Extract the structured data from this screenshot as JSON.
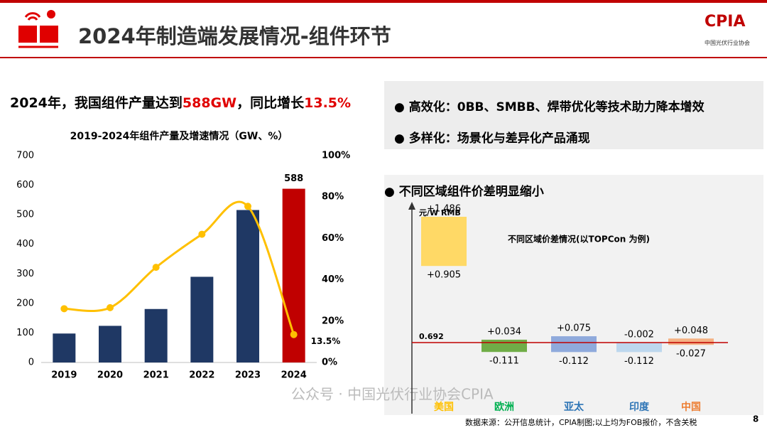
{
  "header": {
    "title": "2024年制造端发展情况-组件环节",
    "logo": "CPIA",
    "logo_sub": "中国光伏行业协会"
  },
  "headline": {
    "parts": [
      {
        "text": "2024年，我国组件产量达到",
        "color": "#000000"
      },
      {
        "text": "588GW",
        "color": "#e00000"
      },
      {
        "text": "，同比增长",
        "color": "#000000"
      },
      {
        "text": "13.5%",
        "color": "#e00000"
      }
    ]
  },
  "bullets": [
    "高效化：0BB、SMBB、焊带优化等技术助力降本增效",
    "多样化：场景化与差异化产品涌现"
  ],
  "section_title": "不同区域组件价差明显缩小",
  "chart_data": [
    {
      "type": "bar_line",
      "title": "2019-2024年组件产量及增速情况（GW、%）",
      "categories": [
        "2019",
        "2020",
        "2021",
        "2022",
        "2023",
        "2024"
      ],
      "series": [
        {
          "type": "bar",
          "colors": [
            "#1f3864",
            "#1f3864",
            "#1f3864",
            "#1f3864",
            "#1f3864",
            "#c00000"
          ],
          "values": [
            98,
            124,
            181,
            290,
            516,
            588
          ],
          "value_labels": [
            null,
            null,
            null,
            null,
            null,
            "588"
          ]
        },
        {
          "type": "line",
          "axis": "y2",
          "color": "#ffc000",
          "values": [
            26,
            26.5,
            46,
            62,
            75.5,
            13.5
          ],
          "value_labels": [
            null,
            null,
            null,
            null,
            null,
            "13.5%"
          ]
        }
      ],
      "ylim": [
        0,
        700
      ],
      "yticks": [
        0,
        100,
        200,
        300,
        400,
        500,
        600,
        700
      ],
      "y2lim": [
        0,
        100
      ],
      "y2ticks": [
        {
          "value": 0,
          "label": "0%"
        },
        {
          "value": 20,
          "label": "20%"
        },
        {
          "value": 40,
          "label": "40%"
        },
        {
          "value": 60,
          "label": "60%"
        },
        {
          "value": 80,
          "label": "80%"
        },
        {
          "value": 100,
          "label": "100%"
        }
      ]
    },
    {
      "type": "range_bar",
      "title": "不同区域价差情况(以TOPCon 为例)",
      "unit_label": "元/W  RMB",
      "baseline": 0.692,
      "baseline_color": "#c00000",
      "categories": [
        "美国",
        "欧洲",
        "亚太",
        "印度",
        "中国"
      ],
      "colors": [
        "#ffd966",
        "#70ad47",
        "#8faadc",
        "#bdd7ee",
        "#f4b183"
      ],
      "category_colors": [
        "#ffc000",
        "#00b050",
        "#2e75b6",
        "#2e75b6",
        "#ed7d31"
      ],
      "series": [
        {
          "values": [
            1.486,
            0.034,
            0.075,
            -0.002,
            0.048
          ],
          "value_labels": [
            "+1.486",
            "+0.034",
            "+0.075",
            "-0.002",
            "+0.048"
          ]
        },
        {
          "values": [
            0.905,
            -0.111,
            -0.112,
            -0.112,
            -0.027
          ],
          "value_labels": [
            "+0.905",
            "-0.111",
            "-0.112",
            "-0.112",
            "-0.027"
          ]
        }
      ]
    }
  ],
  "watermark": "公众号 · 中国光伏行业协会CPIA",
  "source": "数据来源：公开信息统计，CPIA制图;以上均为FOB报价，不含关税",
  "page": 8
}
